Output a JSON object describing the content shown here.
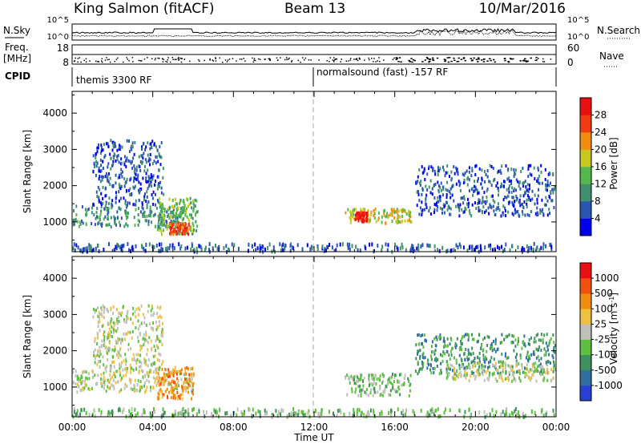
{
  "header": {
    "station": "King Salmon (fitACF)",
    "beam": "Beam 13",
    "date": "10/Mar/2016"
  },
  "strips": {
    "nsky_label": "N.Sky",
    "nsky_ticks": [
      "10^5",
      "10^0"
    ],
    "nsearch_label": "N.Search",
    "nsearch_ticks": [
      "10^5",
      "10^0"
    ],
    "freq_label": "Freq.",
    "freq_unit": "[MHz]",
    "freq_ticks": [
      "18",
      "8"
    ],
    "nave_label": "Nave",
    "nave_ticks": [
      "60",
      "0"
    ],
    "cpid_label": "CPID",
    "cpid_before": "themis 3300 RF",
    "cpid_after": "normalsound (fast) -157 RF"
  },
  "chart_data": [
    {
      "type": "heatmap",
      "name": "power",
      "ylabel": "Slant Range [km]",
      "colorbar_label": "Power [dB]",
      "colorbar_ticks": [
        "28",
        "24",
        "20",
        "16",
        "12",
        "8",
        "4"
      ],
      "colorbar_colors": [
        "#0000ee",
        "#2a55b0",
        "#3f8f70",
        "#55b84a",
        "#c8c820",
        "#f08c10",
        "#f03c10",
        "#e81010"
      ],
      "ylim": [
        180,
        4600
      ],
      "yticks": [
        1000,
        2000,
        3000,
        4000
      ],
      "xlim": [
        0,
        24
      ],
      "xtick_labels": [
        "00:00",
        "04:00",
        "08:00",
        "12:00",
        "16:00",
        "20:00",
        "00:00"
      ],
      "xtick_hours": [
        0,
        4,
        8,
        12,
        16,
        20,
        24
      ],
      "regions": [
        {
          "t": [
            0.0,
            5.5
          ],
          "r": [
            900,
            1500
          ],
          "level": 2
        },
        {
          "t": [
            1.0,
            4.5
          ],
          "r": [
            1500,
            3300
          ],
          "level": 1
        },
        {
          "t": [
            4.2,
            6.2
          ],
          "r": [
            700,
            1700
          ],
          "level": 3
        },
        {
          "t": [
            4.8,
            5.8
          ],
          "r": [
            700,
            1000
          ],
          "level": 6
        },
        {
          "t": [
            13.5,
            16.8
          ],
          "r": [
            1000,
            1400
          ],
          "level": 4
        },
        {
          "t": [
            14.0,
            14.6
          ],
          "r": [
            1050,
            1300
          ],
          "level": 7
        },
        {
          "t": [
            17.0,
            24.0
          ],
          "r": [
            1200,
            2600
          ],
          "level": 1
        },
        {
          "t": [
            0.0,
            24.0
          ],
          "r": [
            200,
            450
          ],
          "level": 1
        }
      ]
    },
    {
      "type": "heatmap",
      "name": "velocity",
      "ylabel": "Slant Range [km]",
      "colorbar_label": "Velocity [m s",
      "colorbar_unit_sup": "-1",
      "colorbar_unit_end": "]",
      "colorbar_ticks": [
        "1000",
        "500",
        "100",
        "25",
        "-25",
        "-100",
        "-500",
        "-1000"
      ],
      "colorbar_colors": [
        "#2a3fd0",
        "#2e6fa0",
        "#3f9060",
        "#5fc040",
        "#c0c0b8",
        "#f0c040",
        "#f08c10",
        "#f05010",
        "#e81010"
      ],
      "ylim": [
        180,
        4600
      ],
      "yticks": [
        1000,
        2000,
        3000,
        4000
      ],
      "xlim": [
        0,
        24
      ],
      "xtick_labels": [
        "00:00",
        "04:00",
        "08:00",
        "12:00",
        "16:00",
        "20:00",
        "00:00"
      ],
      "xtick_hours": [
        0,
        4,
        8,
        12,
        16,
        20,
        24
      ],
      "xlabel": "Time UT",
      "regions": [
        {
          "t": [
            0.0,
            6.0
          ],
          "r": [
            900,
            1500
          ],
          "level": 4
        },
        {
          "t": [
            1.0,
            4.5
          ],
          "r": [
            1500,
            3300
          ],
          "level": 4
        },
        {
          "t": [
            4.2,
            6.0
          ],
          "r": [
            700,
            1600
          ],
          "level": 6
        },
        {
          "t": [
            13.5,
            16.8
          ],
          "r": [
            800,
            1400
          ],
          "level": 3
        },
        {
          "t": [
            17.0,
            24.0
          ],
          "r": [
            1400,
            2500
          ],
          "level": 2
        },
        {
          "t": [
            18.5,
            24.0
          ],
          "r": [
            1200,
            1700
          ],
          "level": 4
        },
        {
          "t": [
            0.0,
            24.0
          ],
          "r": [
            200,
            450
          ],
          "level": 3
        }
      ]
    }
  ]
}
